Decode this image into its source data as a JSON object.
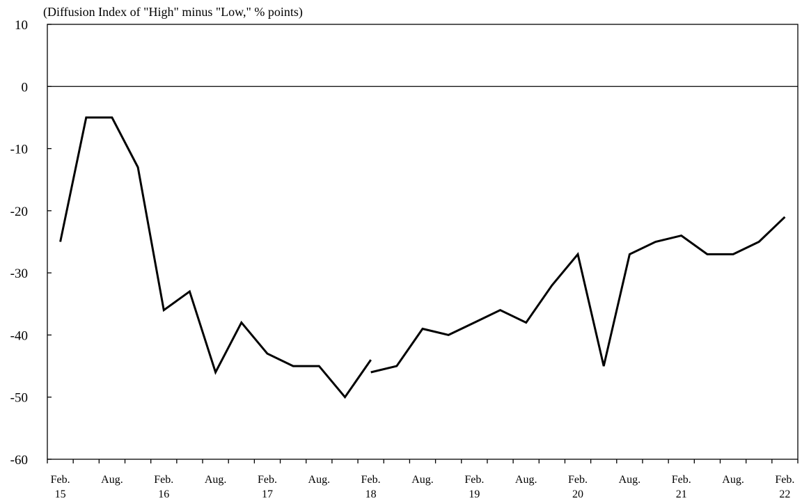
{
  "chart_data": {
    "type": "line",
    "title": "",
    "ylabel": "(Diffusion Index of \"High\" minus \"Low,\" % points)",
    "xlabel": "",
    "ylim": [
      -60,
      10
    ],
    "yticks": [
      "10",
      "0",
      "-10",
      "-20",
      "-30",
      "-40",
      "-50",
      "-60"
    ],
    "xtick_labels": [
      {
        "month": "Feb.",
        "year": "15"
      },
      {
        "month": "Aug.",
        "year": ""
      },
      {
        "month": "Feb.",
        "year": "16"
      },
      {
        "month": "Aug.",
        "year": ""
      },
      {
        "month": "Feb.",
        "year": "17"
      },
      {
        "month": "Aug.",
        "year": ""
      },
      {
        "month": "Feb.",
        "year": "18"
      },
      {
        "month": "Aug.",
        "year": ""
      },
      {
        "month": "Feb.",
        "year": "19"
      },
      {
        "month": "Aug.",
        "year": ""
      },
      {
        "month": "Feb.",
        "year": "20"
      },
      {
        "month": "Aug.",
        "year": ""
      },
      {
        "month": "Feb.",
        "year": "21"
      },
      {
        "month": "Aug.",
        "year": ""
      },
      {
        "month": "Feb.",
        "year": "22"
      }
    ],
    "grid": false,
    "reference_line": 0,
    "series": [
      {
        "segments": [
          {
            "x": [
              "Feb. 15",
              "May 15",
              "Aug. 15",
              "Nov. 15",
              "Feb. 16",
              "May 16",
              "Aug. 16",
              "Nov. 16",
              "Feb. 17",
              "May 17",
              "Aug. 17",
              "Nov. 17",
              "Feb. 18"
            ],
            "values": [
              -25,
              -5,
              -5,
              -13,
              -36,
              -33,
              -46,
              -38,
              -43,
              -45,
              -45,
              -50,
              -44
            ]
          },
          {
            "x": [
              "Feb. 18",
              "May 18",
              "Aug. 18",
              "Nov. 18",
              "Feb. 19",
              "May 19",
              "Aug. 19",
              "Nov. 19",
              "Feb. 20",
              "May 20",
              "Aug. 20",
              "Nov. 20",
              "Feb. 21",
              "May 21",
              "Aug. 21",
              "Nov. 21",
              "Feb. 22"
            ],
            "values": [
              -46,
              -45,
              -39,
              -40,
              -38,
              -36,
              -38,
              -32,
              -27,
              -45,
              -27,
              -25,
              -24,
              -27,
              -27,
              -25,
              -21
            ]
          }
        ],
        "color": "#000000"
      }
    ]
  }
}
